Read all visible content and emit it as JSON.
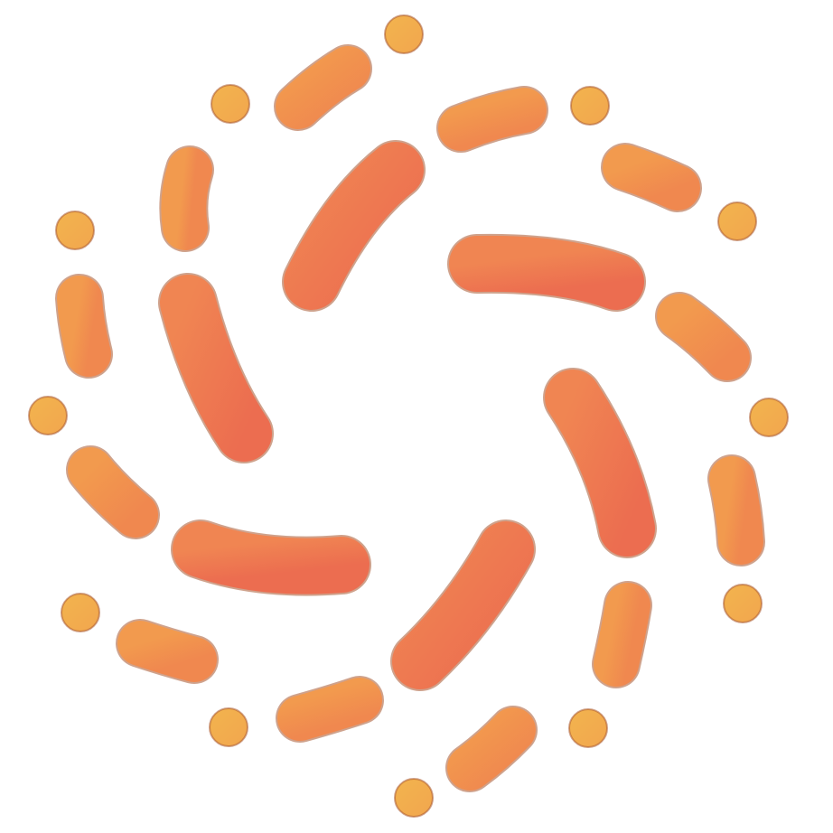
{
  "logo": {
    "icon": "sunburst-spiral-icon",
    "colors": {
      "inner": "#EE7152",
      "middle": "#F2904E",
      "outer": "#F2B04E",
      "stroke": "#A8562E",
      "background": "#FFFFFF"
    }
  }
}
